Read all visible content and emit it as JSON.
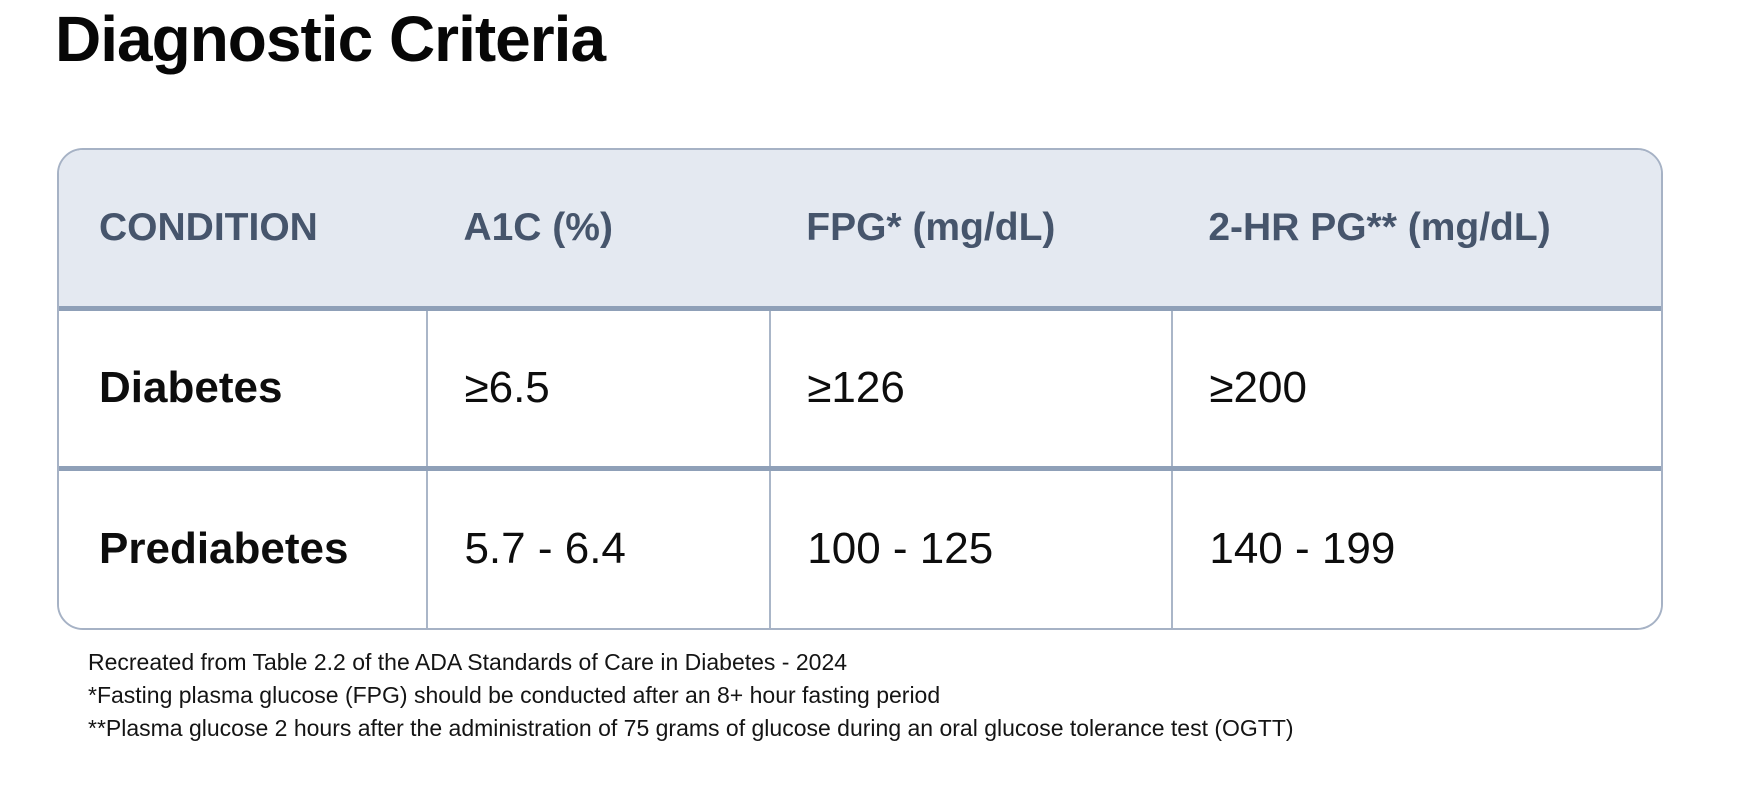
{
  "title": "Diagnostic Criteria",
  "table": {
    "headers": [
      "CONDITION",
      "A1C (%)",
      "FPG* (mg/dL)",
      "2-HR PG** (mg/dL)"
    ],
    "rows": [
      {
        "condition": "Diabetes",
        "a1c": "≥6.5",
        "fpg": "≥126",
        "two_hr_pg": "≥200"
      },
      {
        "condition": "Prediabetes",
        "a1c": "5.7 - 6.4",
        "fpg": "100 - 125",
        "two_hr_pg": "140 - 199"
      }
    ]
  },
  "footnotes": [
    "Recreated from Table 2.2 of the ADA Standards of Care in Diabetes - 2024",
    "*Fasting plasma glucose (FPG) should be conducted after an 8+ hour fasting period",
    "**Plasma glucose 2 hours after the administration of 75 grams of glucose during an oral glucose tolerance test (OGTT)"
  ],
  "colors": {
    "header_bg": "#e4e9f1",
    "header_text": "#46556c",
    "outer_border": "#a6b2c5",
    "row_divider": "#8fa0b8",
    "column_line": "#aab6c8",
    "body_text": "#0d0d0d",
    "title_text": "#070707"
  }
}
